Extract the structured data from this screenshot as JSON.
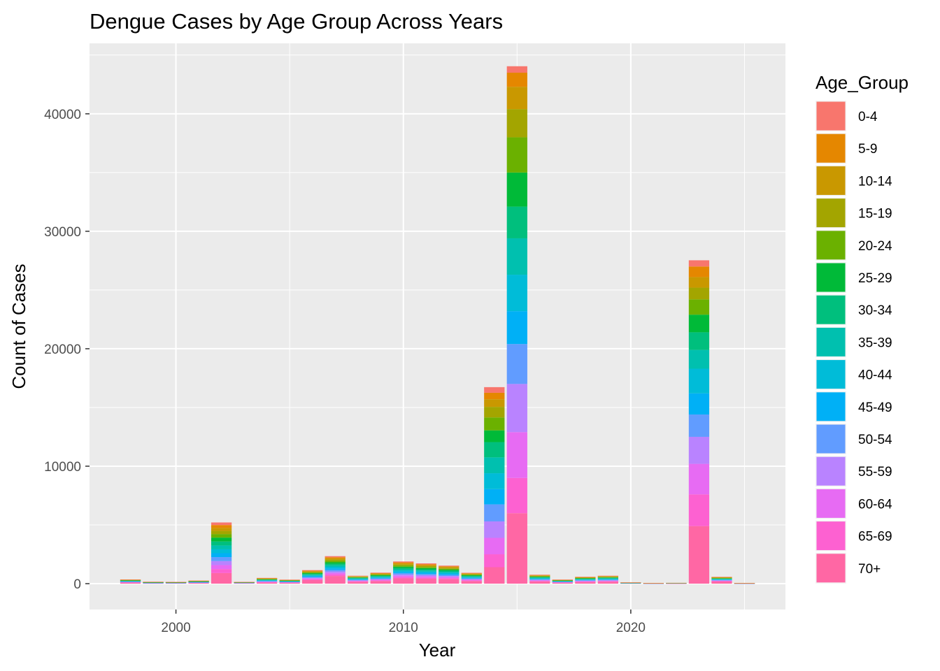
{
  "chart_data": {
    "type": "bar",
    "stacked": true,
    "title": "Dengue Cases by Age Group Across Years",
    "xlabel": "Year",
    "ylabel": "Count of Cases",
    "x_ticks": [
      2000,
      2010,
      2020
    ],
    "y_ticks": [
      0,
      10000,
      20000,
      30000,
      40000
    ],
    "xlim": [
      1996.2,
      2026.8
    ],
    "ylim": [
      -2200,
      46000
    ],
    "legend": {
      "title": "Age_Group",
      "placement": "right",
      "entries": [
        "0-4",
        "5-9",
        "10-14",
        "15-19",
        "20-24",
        "25-29",
        "30-34",
        "35-39",
        "40-44",
        "45-49",
        "50-54",
        "55-59",
        "60-64",
        "65-69",
        "70+"
      ]
    },
    "colors": [
      "#F8766D",
      "#E58700",
      "#C99800",
      "#A3A500",
      "#6BB100",
      "#00BA38",
      "#00BF7D",
      "#00C0AF",
      "#00BCD8",
      "#00B0F6",
      "#619CFF",
      "#B983FF",
      "#E76BF3",
      "#FD61D1",
      "#FF67A4"
    ],
    "grid": true,
    "years": [
      1998,
      1999,
      2000,
      2001,
      2002,
      2003,
      2004,
      2005,
      2006,
      2007,
      2008,
      2009,
      2010,
      2011,
      2012,
      2013,
      2014,
      2015,
      2016,
      2017,
      2018,
      2019,
      2020,
      2021,
      2022,
      2023,
      2024,
      2025
    ],
    "series": [
      {
        "name": "0-4",
        "values": [
          15,
          5,
          8,
          10,
          220,
          6,
          20,
          15,
          45,
          90,
          30,
          40,
          80,
          70,
          60,
          35,
          480,
          550,
          30,
          15,
          25,
          25,
          5,
          2,
          3,
          530,
          20,
          2
        ]
      },
      {
        "name": "5-9",
        "values": [
          15,
          10,
          8,
          12,
          250,
          6,
          25,
          15,
          50,
          100,
          30,
          45,
          90,
          80,
          70,
          40,
          550,
          1200,
          35,
          15,
          25,
          30,
          5,
          2,
          3,
          900,
          25,
          2
        ]
      },
      {
        "name": "10-14",
        "values": [
          15,
          10,
          8,
          12,
          250,
          6,
          25,
          15,
          50,
          100,
          30,
          45,
          90,
          80,
          70,
          40,
          650,
          1900,
          35,
          15,
          25,
          30,
          5,
          2,
          3,
          900,
          25,
          2
        ]
      },
      {
        "name": "15-19",
        "values": [
          15,
          10,
          8,
          12,
          270,
          6,
          25,
          15,
          55,
          110,
          30,
          45,
          90,
          85,
          70,
          45,
          900,
          2400,
          35,
          15,
          25,
          30,
          5,
          2,
          3,
          1000,
          25,
          2
        ]
      },
      {
        "name": "20-24",
        "values": [
          20,
          10,
          8,
          15,
          300,
          8,
          30,
          20,
          60,
          120,
          35,
          50,
          100,
          90,
          80,
          50,
          1100,
          3000,
          40,
          20,
          30,
          35,
          6,
          3,
          4,
          1300,
          30,
          3
        ]
      },
      {
        "name": "25-29",
        "values": [
          20,
          10,
          8,
          15,
          330,
          8,
          30,
          20,
          65,
          130,
          40,
          55,
          110,
          100,
          85,
          55,
          1000,
          2900,
          45,
          20,
          35,
          40,
          6,
          3,
          4,
          1500,
          30,
          3
        ]
      },
      {
        "name": "30-34",
        "values": [
          20,
          10,
          8,
          15,
          340,
          8,
          30,
          20,
          65,
          130,
          40,
          55,
          110,
          100,
          90,
          55,
          1300,
          2700,
          45,
          20,
          35,
          40,
          6,
          3,
          4,
          1500,
          30,
          3
        ]
      },
      {
        "name": "35-39",
        "values": [
          20,
          10,
          8,
          15,
          330,
          8,
          30,
          20,
          65,
          130,
          40,
          55,
          110,
          100,
          90,
          55,
          1350,
          3100,
          45,
          20,
          35,
          40,
          6,
          3,
          4,
          1600,
          30,
          3
        ]
      },
      {
        "name": "40-44",
        "values": [
          20,
          10,
          8,
          15,
          330,
          8,
          30,
          20,
          65,
          130,
          40,
          55,
          110,
          100,
          90,
          55,
          1350,
          3100,
          45,
          20,
          35,
          40,
          6,
          3,
          4,
          2100,
          30,
          3
        ]
      },
      {
        "name": "45-49",
        "values": [
          20,
          10,
          8,
          15,
          330,
          8,
          30,
          20,
          65,
          130,
          40,
          55,
          110,
          100,
          90,
          55,
          1300,
          2800,
          45,
          20,
          35,
          40,
          6,
          3,
          4,
          1800,
          30,
          3
        ]
      },
      {
        "name": "50-54",
        "values": [
          20,
          10,
          8,
          15,
          340,
          8,
          30,
          20,
          65,
          130,
          40,
          55,
          110,
          100,
          90,
          55,
          1450,
          3400,
          45,
          20,
          35,
          40,
          6,
          3,
          4,
          1900,
          30,
          3
        ]
      },
      {
        "name": "55-59",
        "values": [
          20,
          10,
          8,
          15,
          340,
          8,
          30,
          20,
          65,
          130,
          40,
          55,
          110,
          100,
          90,
          55,
          1400,
          4100,
          45,
          20,
          35,
          40,
          6,
          3,
          4,
          2300,
          30,
          3
        ]
      },
      {
        "name": "60-64",
        "values": [
          20,
          10,
          8,
          15,
          340,
          8,
          30,
          20,
          65,
          130,
          40,
          55,
          110,
          100,
          90,
          55,
          1400,
          3900,
          45,
          20,
          35,
          40,
          6,
          3,
          4,
          2600,
          30,
          3
        ]
      },
      {
        "name": "65-69",
        "values": [
          25,
          10,
          8,
          18,
          340,
          8,
          30,
          20,
          70,
          130,
          40,
          55,
          110,
          100,
          90,
          55,
          1100,
          3000,
          45,
          20,
          35,
          40,
          6,
          3,
          4,
          2700,
          35,
          3
        ]
      },
      {
        "name": "70+",
        "values": [
          90,
          25,
          35,
          60,
          900,
          40,
          95,
          80,
          300,
          650,
          160,
          220,
          450,
          420,
          380,
          220,
          1400,
          6000,
          185,
          85,
          140,
          165,
          25,
          10,
          15,
          4900,
          180,
          10
        ]
      }
    ]
  }
}
